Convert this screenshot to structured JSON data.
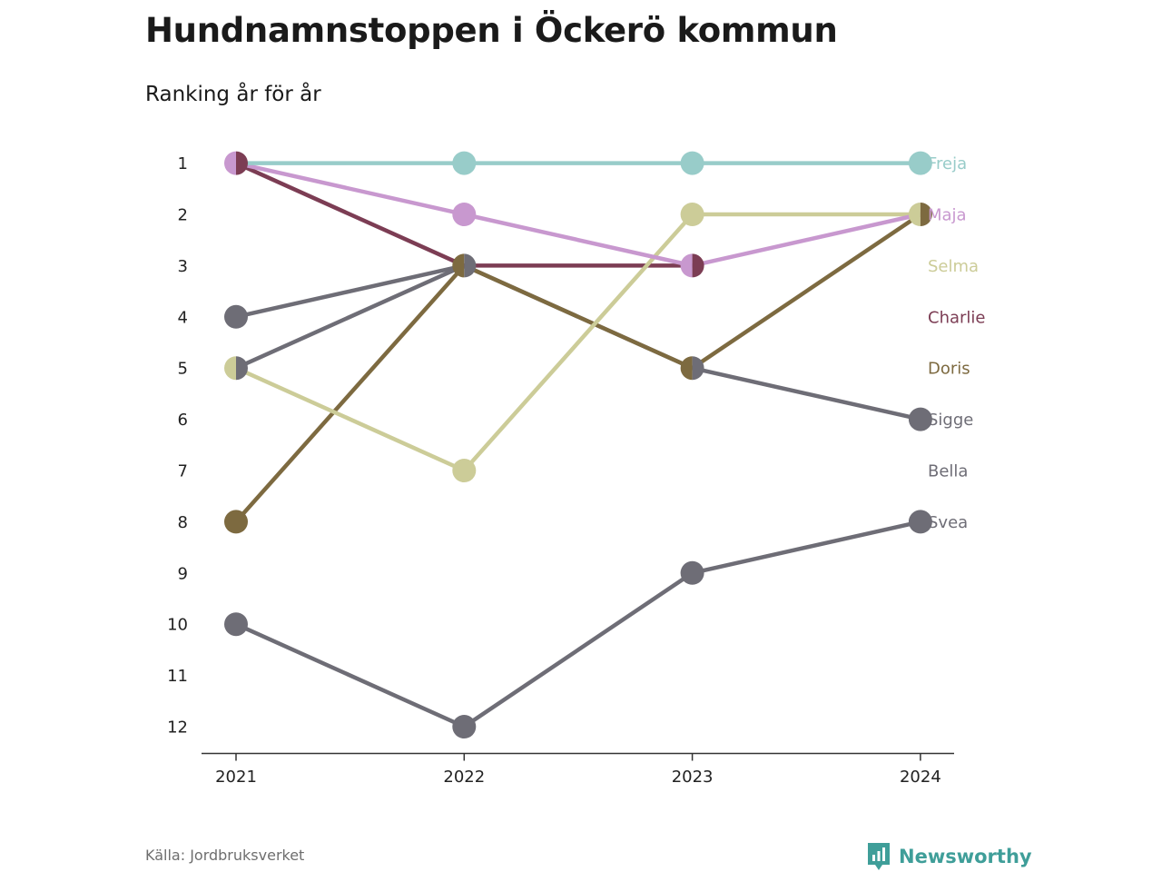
{
  "title": "Hundnamnstoppen i Öckerö kommun",
  "subtitle": "Ranking år för år",
  "source": "Källa: Jordbruksverket",
  "brand": {
    "name": "Newsworthy",
    "icon": "bar-chart-speech-bubble-icon",
    "color": "#3f9e99"
  },
  "chart_data": {
    "type": "line",
    "subtype": "bump",
    "x": [
      "2021",
      "2022",
      "2023",
      "2024"
    ],
    "y_ticks": [
      "1",
      "2",
      "3",
      "4",
      "5",
      "6",
      "7",
      "8",
      "9",
      "10",
      "11",
      "12"
    ],
    "ylim": [
      1,
      12
    ],
    "y_inverted": true,
    "grid": false,
    "legend": "direct labels at right",
    "series": [
      {
        "name": "Freja",
        "color": "#98ccc9",
        "values": [
          1,
          1,
          1,
          1
        ]
      },
      {
        "name": "Maja",
        "color": "#c898cf",
        "values": [
          1,
          2,
          3,
          2
        ]
      },
      {
        "name": "Selma",
        "color": "#cccc98",
        "values": [
          5,
          7,
          2,
          2
        ]
      },
      {
        "name": "Charlie",
        "color": "#7c3d54",
        "values": [
          1,
          3,
          3,
          null
        ]
      },
      {
        "name": "Doris",
        "color": "#7d6a40",
        "values": [
          8,
          3,
          5,
          2
        ]
      },
      {
        "name": "Sigge",
        "color": "#6e6d76",
        "values": [
          5,
          3,
          5,
          6
        ]
      },
      {
        "name": "Bella",
        "color": "#6e6d76",
        "values": [
          4,
          3,
          null,
          null
        ]
      },
      {
        "name": "Svea",
        "color": "#6e6d76",
        "values": [
          10,
          12,
          9,
          8
        ]
      }
    ]
  }
}
